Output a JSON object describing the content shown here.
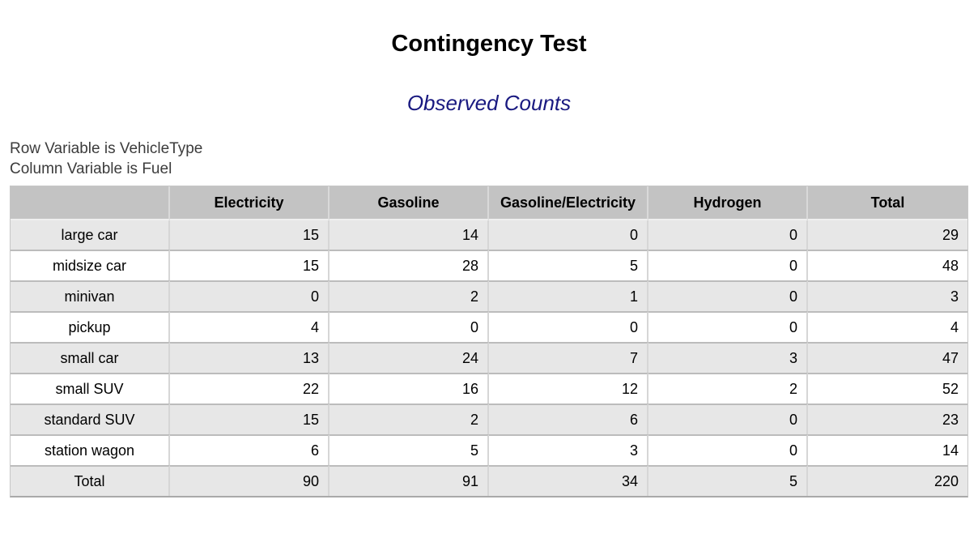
{
  "report": {
    "title": "Contingency Test",
    "subtitle": "Observed Counts",
    "row_variable_line": "Row Variable is VehicleType",
    "column_variable_line": "Column Variable is Fuel"
  },
  "table": {
    "columns": [
      "",
      "Electricity",
      "Gasoline",
      "Gasoline/Electricity",
      "Hydrogen",
      "Total"
    ],
    "rows": [
      {
        "label": "large car",
        "values": [
          "15",
          "14",
          "0",
          "0",
          "29"
        ]
      },
      {
        "label": "midsize car",
        "values": [
          "15",
          "28",
          "5",
          "0",
          "48"
        ]
      },
      {
        "label": "minivan",
        "values": [
          "0",
          "2",
          "1",
          "0",
          "3"
        ]
      },
      {
        "label": "pickup",
        "values": [
          "4",
          "0",
          "0",
          "0",
          "4"
        ]
      },
      {
        "label": "small car",
        "values": [
          "13",
          "24",
          "7",
          "3",
          "47"
        ]
      },
      {
        "label": "small SUV",
        "values": [
          "22",
          "16",
          "12",
          "2",
          "52"
        ]
      },
      {
        "label": "standard SUV",
        "values": [
          "15",
          "2",
          "6",
          "0",
          "23"
        ]
      },
      {
        "label": "station wagon",
        "values": [
          "6",
          "5",
          "3",
          "0",
          "14"
        ]
      },
      {
        "label": "Total",
        "values": [
          "90",
          "91",
          "34",
          "5",
          "220"
        ]
      }
    ]
  },
  "colors": {
    "subtitle_text": "#191980",
    "meta_text": "#3c3c3c",
    "header_bg": "#c3c3c3",
    "row_alt_bg": "#e7e7e7",
    "row_bg": "#ffffff"
  }
}
